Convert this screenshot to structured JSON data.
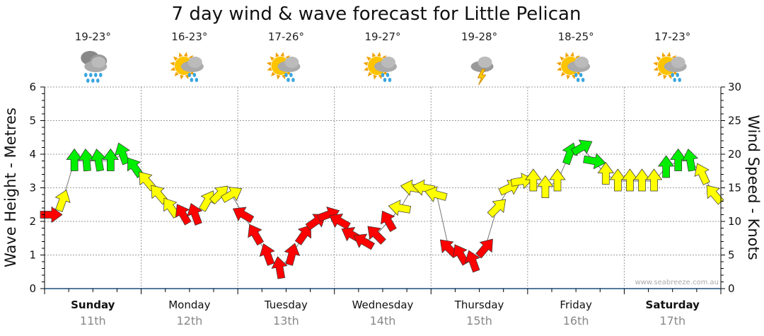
{
  "chart_data": {
    "type": "scatter",
    "title": "7 day wind & wave forecast for Little Pelican",
    "ylabel": "Wave Height - Metres",
    "y2label": "Wind Speed - Knots",
    "ylim": [
      0,
      6
    ],
    "y2lim": [
      0,
      30
    ],
    "yticks": [
      "0",
      "1",
      "2",
      "3",
      "4",
      "5",
      "6"
    ],
    "y2ticks": [
      "0",
      "5",
      "10",
      "15",
      "20",
      "25",
      "30"
    ],
    "grid": true,
    "watermark": "www.seabreeze.com.au",
    "days": [
      {
        "day": "Sunday",
        "date": "11th",
        "bold": true,
        "temp": "19-23°",
        "icon": "heavy-rain-icon"
      },
      {
        "day": "Monday",
        "date": "12th",
        "bold": false,
        "temp": "16-23°",
        "icon": "sun-showers-icon"
      },
      {
        "day": "Tuesday",
        "date": "13th",
        "bold": false,
        "temp": "17-26°",
        "icon": "partly-cloudy-icon"
      },
      {
        "day": "Wednesday",
        "date": "14th",
        "bold": false,
        "temp": "19-27°",
        "icon": "sun-showers-icon"
      },
      {
        "day": "Thursday",
        "date": "15th",
        "bold": false,
        "temp": "19-28°",
        "icon": "thunderstorm-icon"
      },
      {
        "day": "Friday",
        "date": "16th",
        "bold": false,
        "temp": "18-25°",
        "icon": "sun-showers-icon"
      },
      {
        "day": "Saturday",
        "date": "17th",
        "bold": true,
        "temp": "17-23°",
        "icon": "sun-showers-icon"
      }
    ],
    "colors": {
      "light": "#ff0000",
      "moderate": "#ffff00",
      "strong": "#00ee00"
    },
    "series_note": "wind arrows every 3 hours: [knots, arrow heading degrees, category]",
    "wind": [
      [
        11,
        90,
        "light"
      ],
      [
        13,
        20,
        "moderate"
      ],
      [
        19,
        0,
        "strong"
      ],
      [
        19,
        -5,
        "strong"
      ],
      [
        19,
        -10,
        "strong"
      ],
      [
        19,
        0,
        "strong"
      ],
      [
        20,
        -20,
        "strong"
      ],
      [
        18,
        -35,
        "strong"
      ],
      [
        16,
        -40,
        "moderate"
      ],
      [
        14,
        -40,
        "moderate"
      ],
      [
        12,
        -35,
        "moderate"
      ],
      [
        11,
        -30,
        "light"
      ],
      [
        11,
        -20,
        "light"
      ],
      [
        13,
        30,
        "moderate"
      ],
      [
        14,
        45,
        "moderate"
      ],
      [
        14,
        60,
        "moderate"
      ],
      [
        11,
        -60,
        "light"
      ],
      [
        8,
        -30,
        "light"
      ],
      [
        5,
        -20,
        "light"
      ],
      [
        3,
        -10,
        "light"
      ],
      [
        5,
        15,
        "light"
      ],
      [
        8,
        35,
        "light"
      ],
      [
        10,
        55,
        "light"
      ],
      [
        11,
        70,
        "light"
      ],
      [
        10,
        -60,
        "light"
      ],
      [
        8,
        -60,
        "light"
      ],
      [
        7,
        -60,
        "light"
      ],
      [
        8,
        -45,
        "light"
      ],
      [
        10,
        -30,
        "light"
      ],
      [
        12,
        -80,
        "moderate"
      ],
      [
        15,
        -80,
        "moderate"
      ],
      [
        15,
        -80,
        "moderate"
      ],
      [
        14,
        -75,
        "moderate"
      ],
      [
        6,
        -45,
        "light"
      ],
      [
        5,
        -30,
        "light"
      ],
      [
        4,
        -20,
        "light"
      ],
      [
        6,
        40,
        "light"
      ],
      [
        12,
        45,
        "moderate"
      ],
      [
        15,
        65,
        "moderate"
      ],
      [
        16,
        80,
        "moderate"
      ],
      [
        16,
        0,
        "moderate"
      ],
      [
        15,
        0,
        "moderate"
      ],
      [
        16,
        0,
        "moderate"
      ],
      [
        20,
        20,
        "strong"
      ],
      [
        21,
        60,
        "strong"
      ],
      [
        19,
        100,
        "strong"
      ],
      [
        17,
        0,
        "moderate"
      ],
      [
        16,
        0,
        "moderate"
      ],
      [
        16,
        0,
        "moderate"
      ],
      [
        16,
        0,
        "moderate"
      ],
      [
        16,
        0,
        "moderate"
      ],
      [
        18,
        0,
        "strong"
      ],
      [
        19,
        0,
        "strong"
      ],
      [
        19,
        -10,
        "strong"
      ],
      [
        17,
        -25,
        "moderate"
      ],
      [
        14,
        -40,
        "moderate"
      ]
    ]
  }
}
